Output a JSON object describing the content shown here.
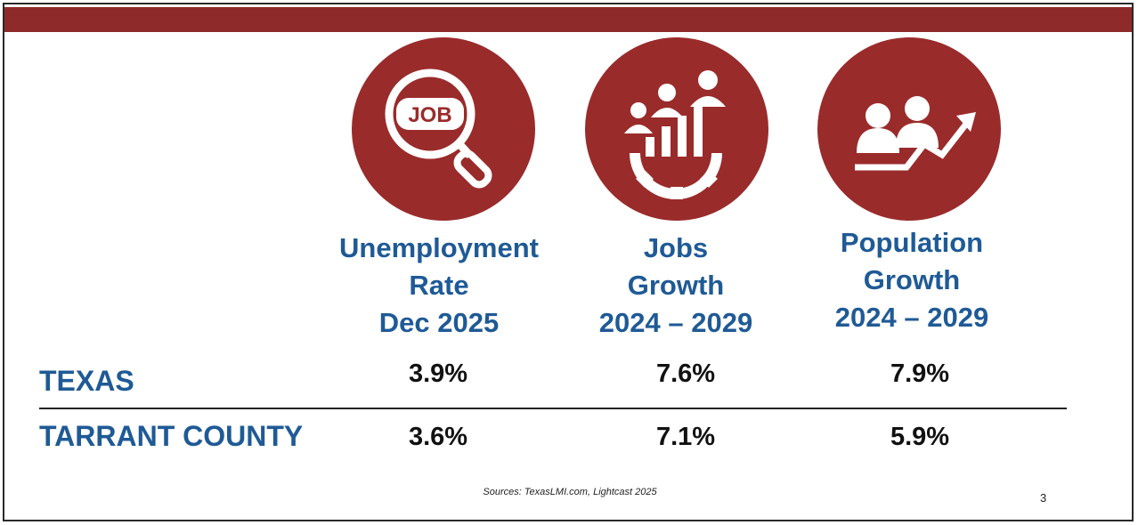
{
  "theme": {
    "banner_color": "#8e2a2a",
    "icon_color": "#9a2b2b",
    "heading_color": "#1f5a96"
  },
  "icons": [
    {
      "name": "job-search-icon",
      "text": "JOB"
    },
    {
      "name": "jobs-growth-icon"
    },
    {
      "name": "population-growth-icon"
    }
  ],
  "columns": [
    {
      "lines": [
        "Unemployment",
        "Rate",
        "Dec 2025"
      ]
    },
    {
      "lines": [
        "Jobs",
        "Growth",
        "2024 – 2029"
      ]
    },
    {
      "lines": [
        "Population",
        "Growth",
        "2024 – 2029"
      ]
    }
  ],
  "rows": [
    {
      "label": "TEXAS",
      "values": [
        "3.9%",
        "7.6%",
        "7.9%"
      ]
    },
    {
      "label": "TARRANT COUNTY",
      "values": [
        "3.6%",
        "7.1%",
        "5.9%"
      ]
    }
  ],
  "footer": {
    "source": "Sources: TexasLMI.com, Lightcast 2025",
    "page_number": "3"
  }
}
